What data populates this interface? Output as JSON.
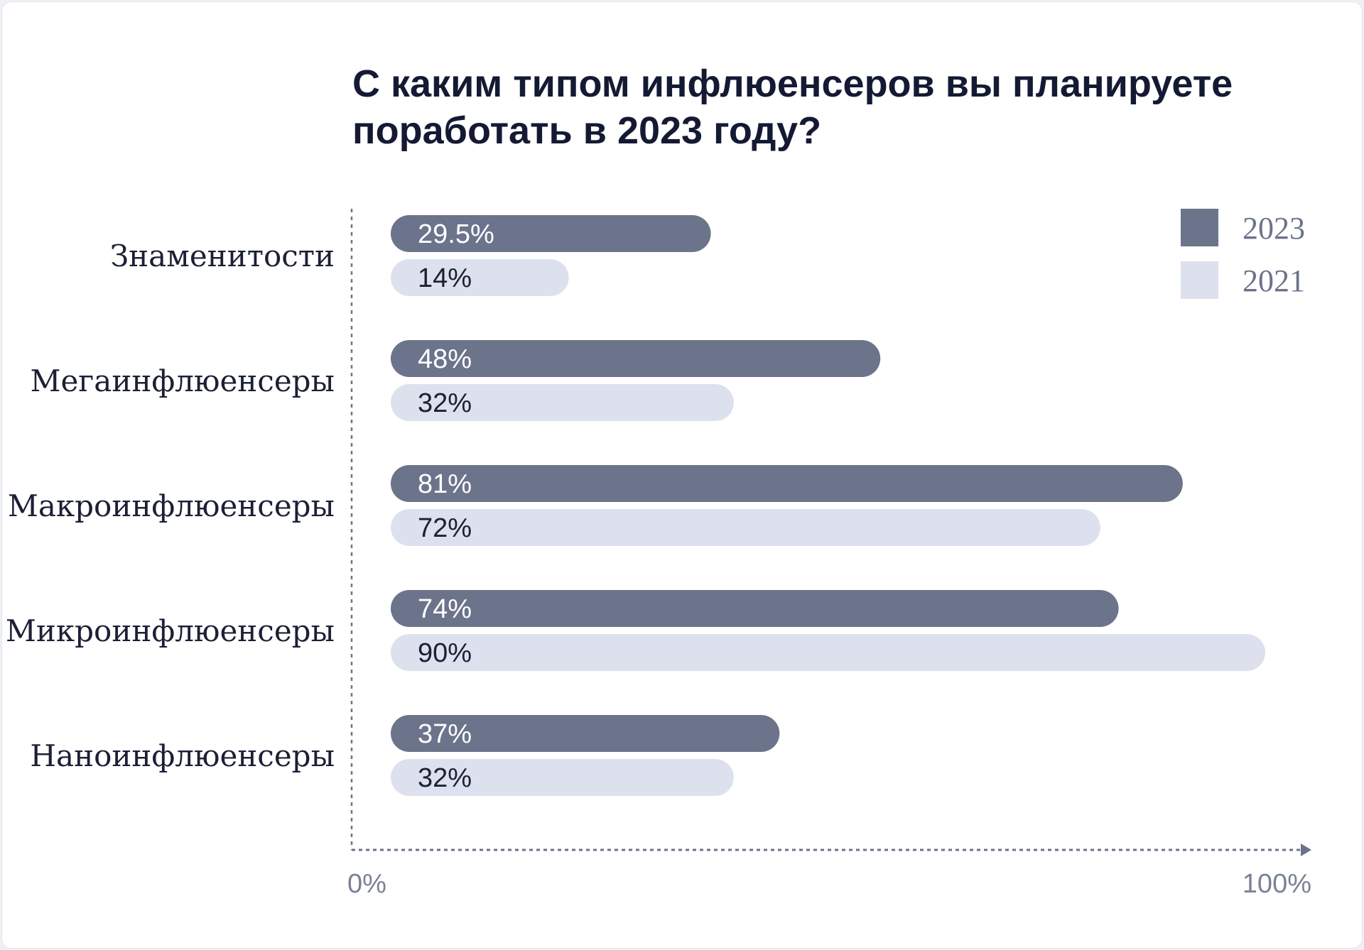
{
  "chart_data": {
    "type": "bar",
    "orientation": "horizontal",
    "title": "С каким типом инфлюенсеров вы планируете поработать в 2023 году?",
    "categories": [
      "Знаменитости",
      "Мегаинфлюенсеры",
      "Макроинфлюенсеры",
      "Микроинфлюенсеры",
      "Наноинфлюенсеры"
    ],
    "series": [
      {
        "name": "2023",
        "color": "#6c748b",
        "values": [
          29.5,
          48,
          81,
          74,
          37
        ],
        "labels": [
          "29.5%",
          "48%",
          "81%",
          "74%",
          "37%"
        ]
      },
      {
        "name": "2021",
        "color": "#dce1ed",
        "values": [
          14,
          32,
          72,
          90,
          32
        ],
        "labels": [
          "14%",
          "32%",
          "72%",
          "90%",
          "32%"
        ]
      }
    ],
    "xlim": [
      0,
      100
    ],
    "x_ticks": [
      "0%",
      "100%"
    ],
    "legend": "top-right",
    "grid": false
  }
}
